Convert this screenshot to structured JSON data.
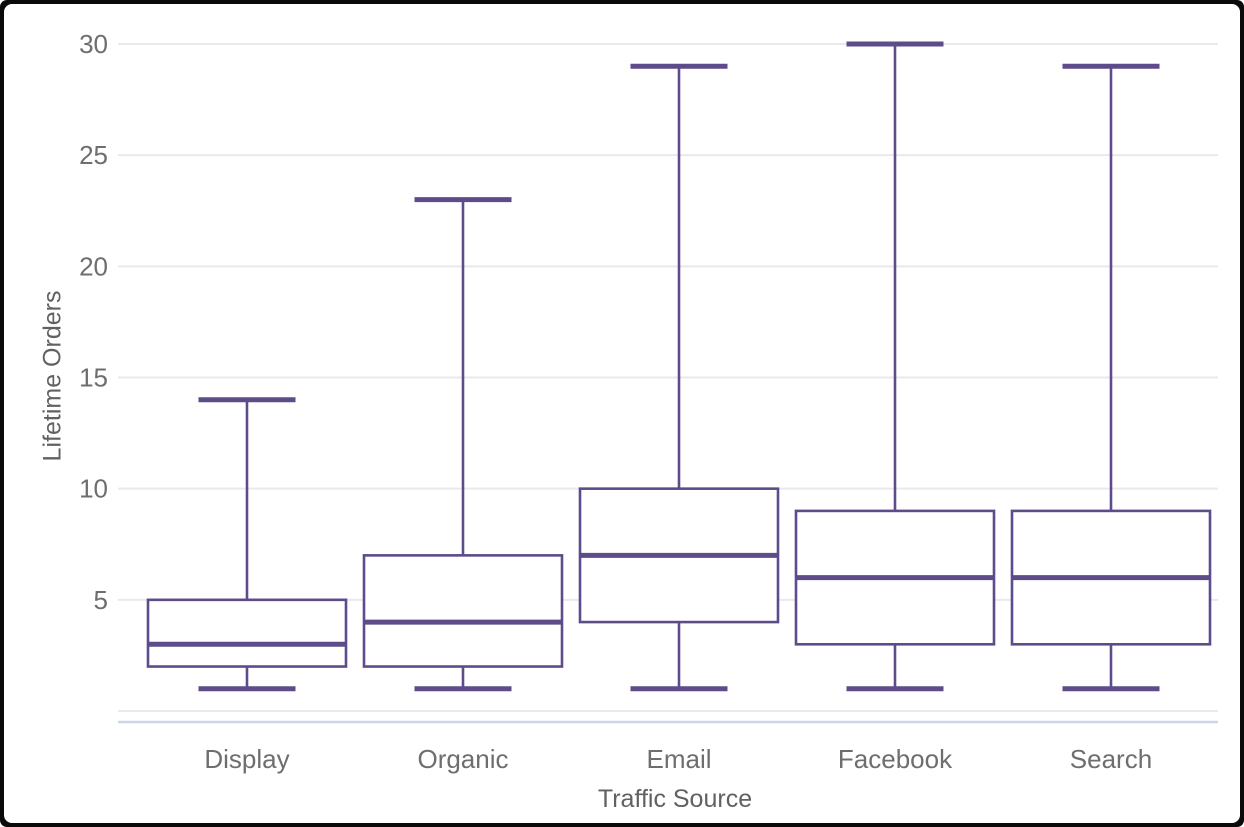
{
  "chart_data": {
    "type": "boxplot",
    "title": "",
    "xlabel": "Traffic Source",
    "ylabel": "Lifetime Orders",
    "categories": [
      "Display",
      "Organic",
      "Email",
      "Facebook",
      "Search"
    ],
    "boxes": [
      {
        "category": "Display",
        "min": 1,
        "q1": 2,
        "median": 3,
        "q3": 5,
        "max": 14
      },
      {
        "category": "Organic",
        "min": 1,
        "q1": 2,
        "median": 4,
        "q3": 7,
        "max": 23
      },
      {
        "category": "Email",
        "min": 1,
        "q1": 4,
        "median": 7,
        "q3": 10,
        "max": 29
      },
      {
        "category": "Facebook",
        "min": 1,
        "q1": 3,
        "median": 6,
        "q3": 9,
        "max": 30
      },
      {
        "category": "Search",
        "min": 1,
        "q1": 3,
        "median": 6,
        "q3": 9,
        "max": 29
      }
    ],
    "yticks": [
      5,
      10,
      15,
      20,
      25,
      30
    ],
    "ylim": [
      0,
      30.6
    ],
    "grid": true,
    "legend": false,
    "colors": {
      "box_stroke": "#5d4b8a",
      "box_fill": "#ffffff",
      "gridline": "#e9e9e9",
      "zero_line": "#e9e9e9",
      "axis_line": "#c9d6e6",
      "tick_text": "#6e6e6e",
      "title_text": "#616161",
      "background": "#ffffff",
      "frame": "#0a0a0a"
    }
  }
}
